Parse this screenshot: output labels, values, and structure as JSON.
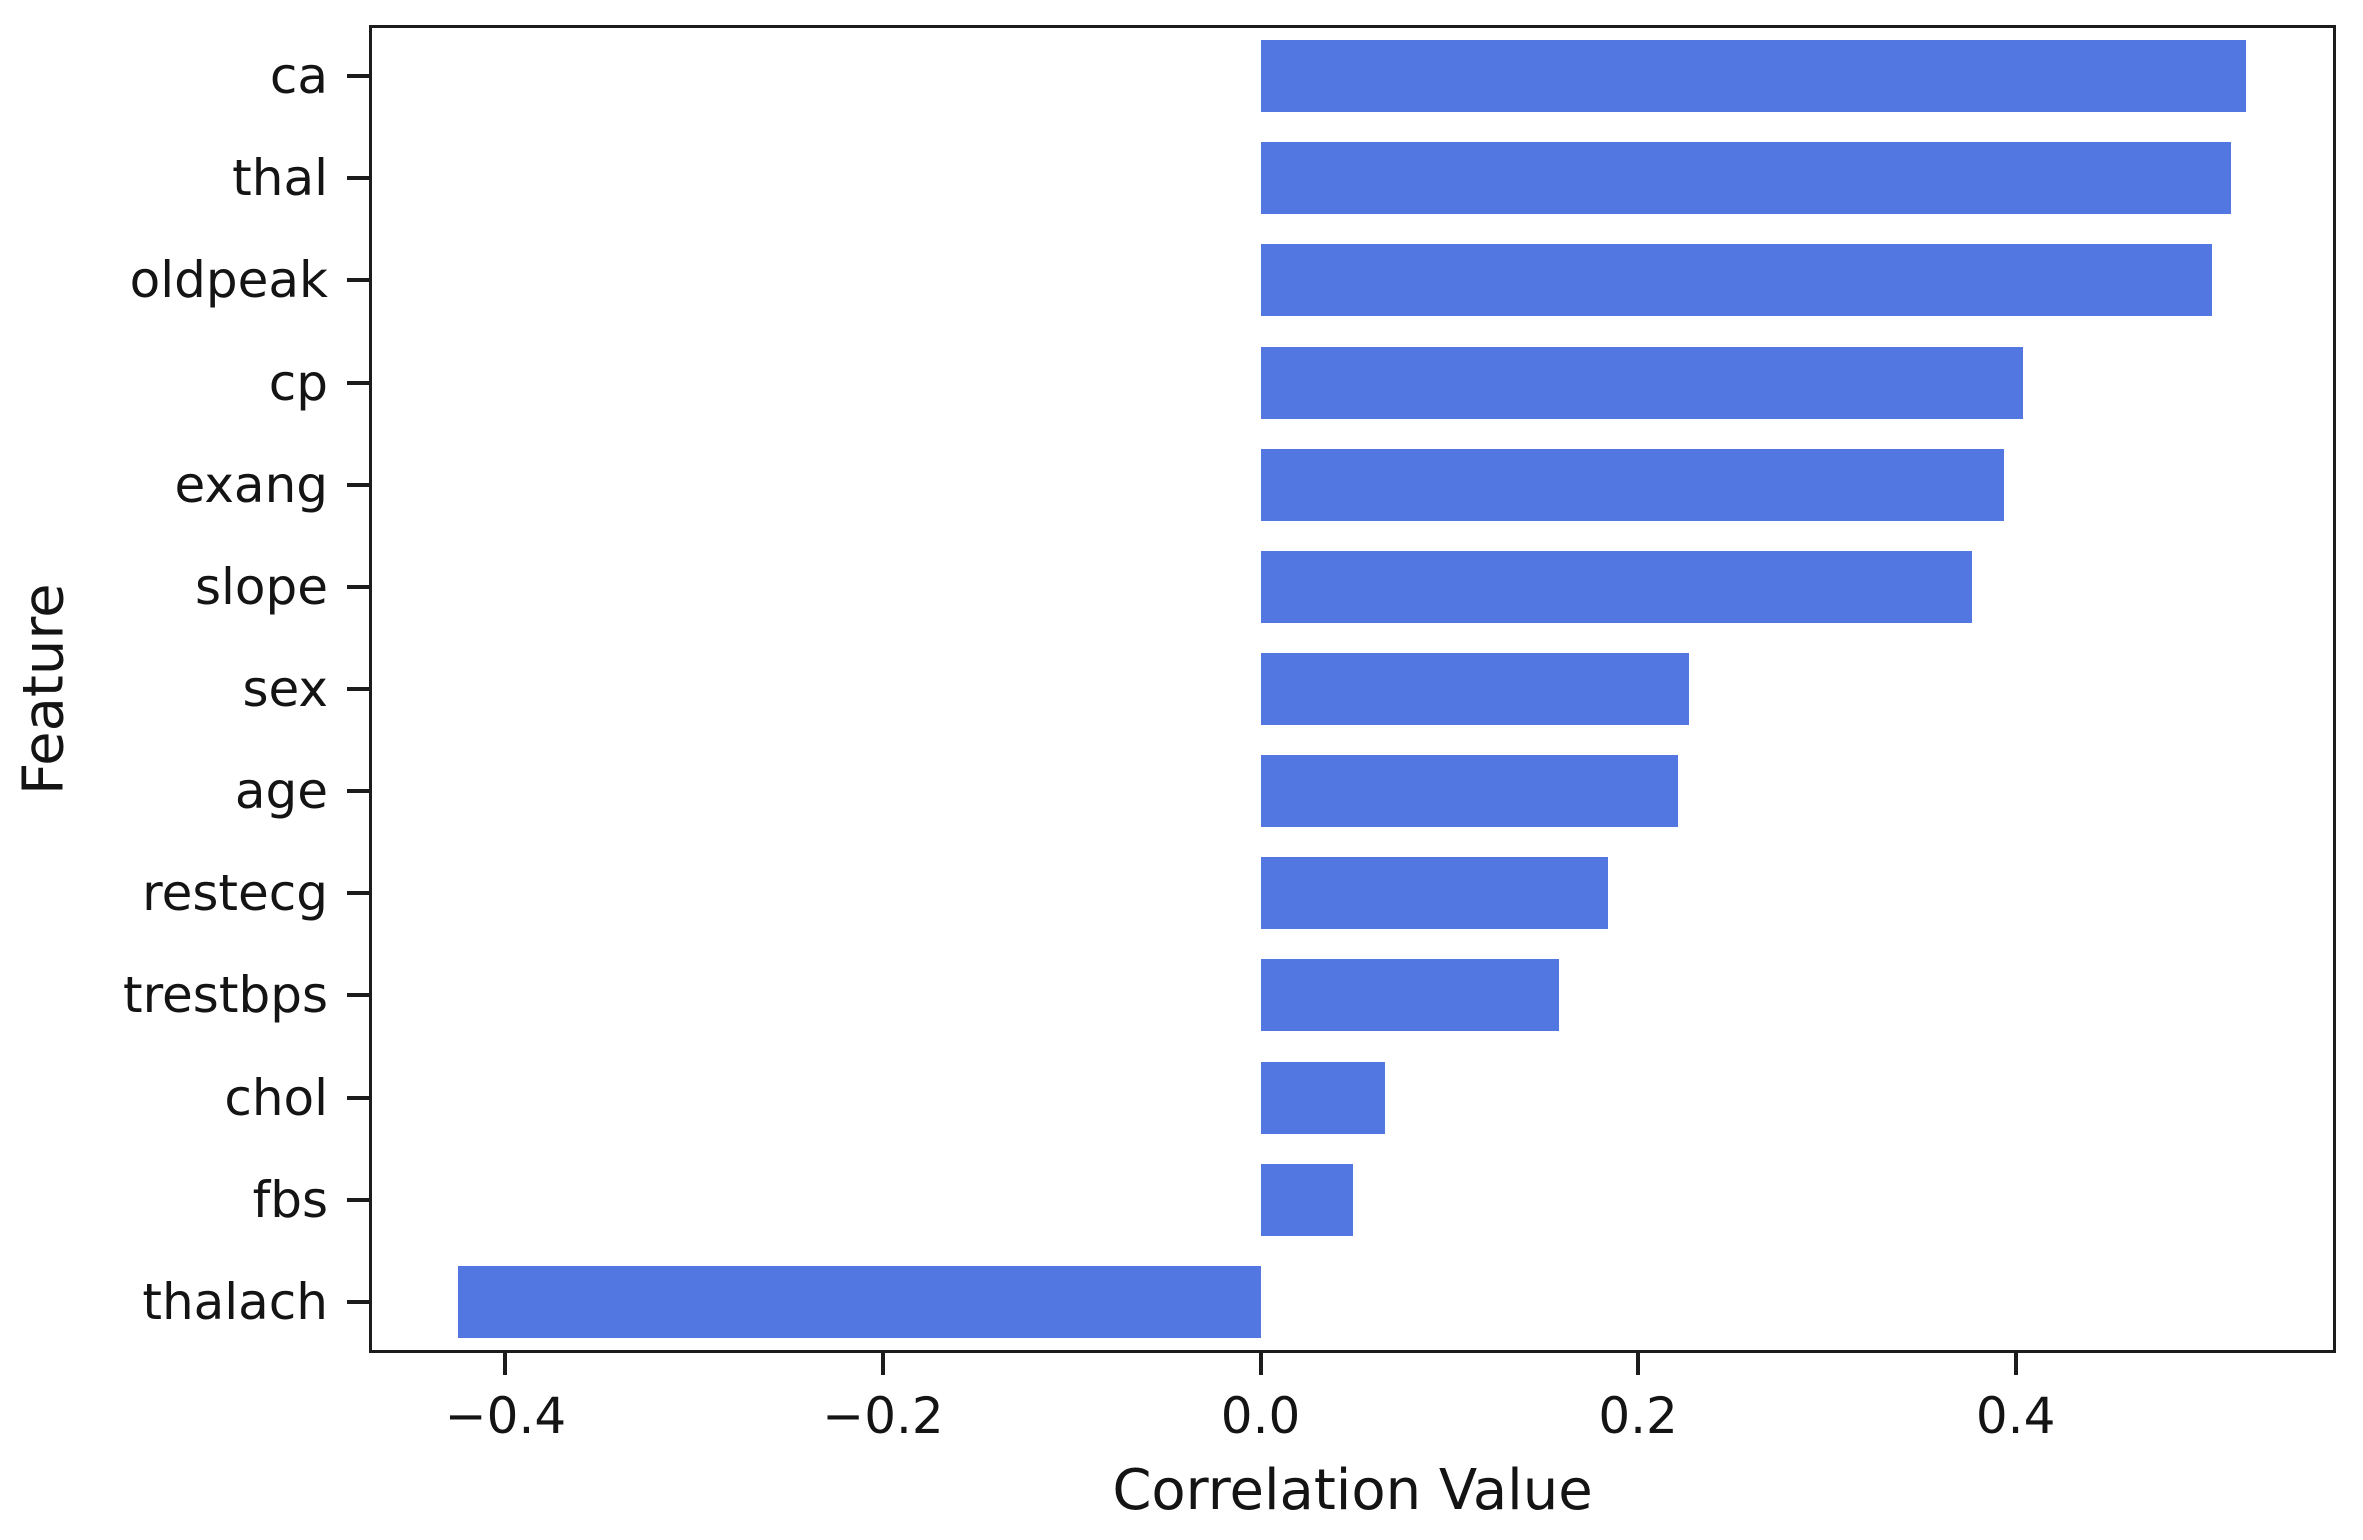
{
  "chart_data": {
    "type": "bar",
    "orientation": "horizontal",
    "title": "",
    "xlabel": "Correlation Value",
    "ylabel": "Feature",
    "categories": [
      "ca",
      "thal",
      "oldpeak",
      "cp",
      "exang",
      "slope",
      "sex",
      "age",
      "restecg",
      "trestbps",
      "chol",
      "fbs",
      "thalach"
    ],
    "values": [
      0.522,
      0.514,
      0.504,
      0.404,
      0.394,
      0.377,
      0.227,
      0.221,
      0.184,
      0.158,
      0.066,
      0.049,
      -0.425
    ],
    "xlim": [
      -0.4723,
      0.5697
    ],
    "xticks": [
      -0.4,
      -0.2,
      0.0,
      0.2,
      0.4
    ],
    "xtick_labels": [
      "−0.4",
      "−0.2",
      "0.0",
      "0.2",
      "0.4"
    ],
    "grid": false,
    "legend": null,
    "bar_color": "#5377e0",
    "axis_color": "#1c1c1c",
    "text_color": "#141414",
    "background_color": "#ffffff"
  }
}
